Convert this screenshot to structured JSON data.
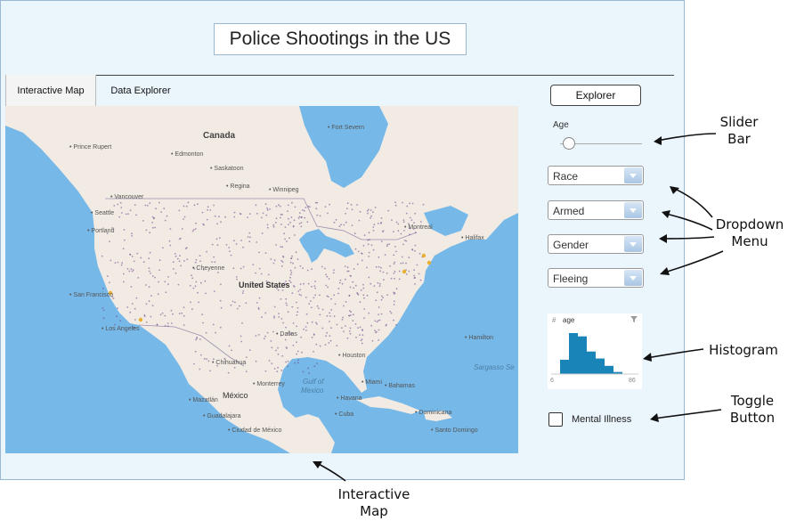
{
  "title": "Police Shootings in the US",
  "tabs": [
    {
      "label": "Interactive Map",
      "active": true
    },
    {
      "label": "Data Explorer",
      "active": false
    }
  ],
  "map": {
    "labels": {
      "canada": "Canada",
      "united_states": "United States",
      "mexico": "México",
      "gulf1": "Gulf of",
      "gulf2": "Mexico",
      "sargasso": "Sargasso Se"
    },
    "cities": [
      "Prince Rupert",
      "Edmonton",
      "Saskatoon",
      "Regina",
      "Winnipeg",
      "Vancouver",
      "Seattle",
      "Portland",
      "Cheyenne",
      "San Francisco",
      "Los Angeles",
      "Dallas",
      "Chihuahua",
      "Monterrey",
      "Houston",
      "Miami",
      "Havana",
      "Mazatlán",
      "Guadalajara",
      "Ciudad de México",
      "Montreal",
      "Halifax",
      "Hamilton",
      "Fort Severn",
      "Santo Domingo",
      "Bahamas",
      "Cuba",
      "Dominicana"
    ]
  },
  "sidebar": {
    "explorer_button": "Explorer",
    "age_label": "Age",
    "age_value_fraction": 0.05,
    "dropdowns": [
      "Race",
      "Armed",
      "Gender",
      "Fleeing"
    ],
    "histogram": {
      "hash": "#",
      "title": "age",
      "min": "6",
      "max": "86",
      "bars": [
        0.35,
        1.0,
        0.92,
        0.55,
        0.38,
        0.2,
        0.05
      ]
    },
    "checkbox_label": "Mental Illness",
    "checkbox_checked": false
  },
  "annotations": {
    "slider1": "Slider",
    "slider2": "Bar",
    "dropdown1": "Dropdown",
    "dropdown2": "Menu",
    "histogram": "Histogram",
    "toggle1": "Toggle",
    "toggle2": "Button",
    "map1": "Interactive",
    "map2": "Map"
  },
  "colors": {
    "water": "#76b8e8",
    "land": "#f2ebe3",
    "histogram_bar": "#1984b8",
    "incident_dot": "#6b3f8a"
  }
}
